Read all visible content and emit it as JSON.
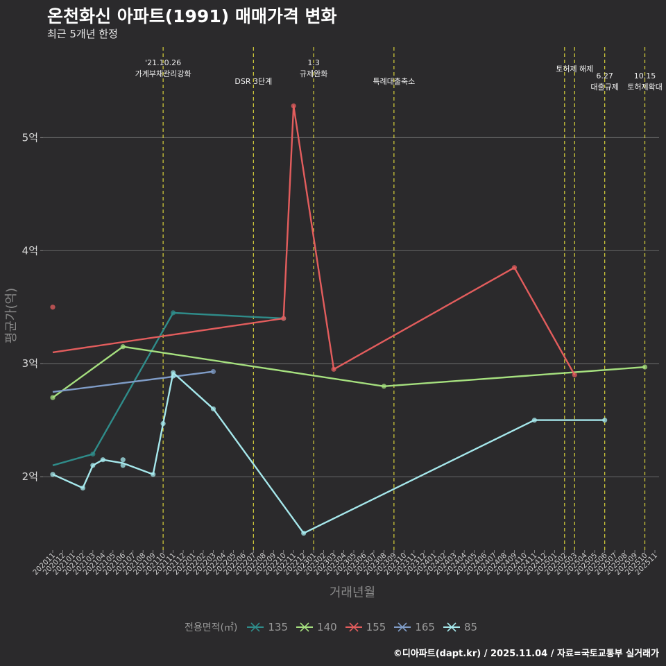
{
  "title": "온천화신 아파트(1991) 매매가격 변화",
  "subtitle": "최근 5개년 한정",
  "footer": "©디아파트(dapt.kr) / 2025.11.04 / 자료=국토교통부 실거래가",
  "chart_data": {
    "type": "line",
    "xlabel": "거래년월",
    "ylabel": "평균가(억)",
    "ylim": [
      1.35,
      5.8
    ],
    "yticks": [
      2,
      3,
      4,
      5
    ],
    "ytick_labels": [
      "2억",
      "3억",
      "4억",
      "5억"
    ],
    "x_tick_labels": [
      "202011",
      "202012",
      "202101",
      "202102",
      "202103",
      "202104",
      "202105",
      "202106",
      "202107",
      "202108",
      "202109",
      "202110",
      "202111",
      "202112",
      "202201",
      "202202",
      "202203",
      "202204",
      "202205",
      "202206",
      "202207",
      "202208",
      "202209",
      "202210",
      "202211",
      "202212",
      "202301",
      "202302",
      "202303",
      "202304",
      "202305",
      "202306",
      "202307",
      "202308",
      "202309",
      "202310",
      "202311",
      "202312",
      "202401",
      "202402",
      "202403",
      "202404",
      "202405",
      "202406",
      "202407",
      "202408",
      "202409",
      "202410",
      "202411",
      "202412",
      "202501",
      "202502",
      "202503",
      "202504",
      "202505",
      "202506",
      "202507",
      "202508",
      "202509",
      "202510",
      "202511"
    ],
    "events": [
      {
        "x": 11,
        "lines": [
          "'21.10.26",
          "가계부채관리강화"
        ]
      },
      {
        "x": 20,
        "lines": [
          "DSR 3단계"
        ]
      },
      {
        "x": 26,
        "lines": [
          "1.3",
          "규제완화"
        ]
      },
      {
        "x": 34,
        "lines": [
          "특례대출축소"
        ]
      },
      {
        "x": 51,
        "lines": []
      },
      {
        "x": 52,
        "lines": [
          "토허제 해제"
        ]
      },
      {
        "x": 55,
        "lines": [
          "6.27",
          "대출규제"
        ]
      },
      {
        "x": 59,
        "lines": [
          "10.15",
          "토허제확대"
        ]
      }
    ],
    "legend_title": "전용면적(㎡)",
    "series": [
      {
        "name": "135",
        "color": "#2f8c8a",
        "points": [
          [
            0,
            2.1
          ],
          [
            4,
            2.2
          ],
          [
            12,
            3.45
          ],
          [
            23,
            3.4
          ]
        ],
        "raw": [
          [
            4,
            2.2
          ],
          [
            12,
            3.45
          ],
          [
            23,
            3.4
          ]
        ]
      },
      {
        "name": "140",
        "color": "#a6e07f",
        "points": [
          [
            0,
            2.7
          ],
          [
            7,
            3.15
          ],
          [
            33,
            2.8
          ],
          [
            59,
            2.97
          ]
        ],
        "raw": [
          [
            0,
            2.7
          ],
          [
            7,
            3.15
          ],
          [
            33,
            2.8
          ],
          [
            59,
            2.97
          ]
        ]
      },
      {
        "name": "155",
        "color": "#e35d5d",
        "points": [
          [
            0,
            3.1
          ],
          [
            23,
            3.4
          ],
          [
            24,
            5.28
          ],
          [
            28,
            2.95
          ],
          [
            46,
            3.85
          ],
          [
            52,
            2.9
          ]
        ],
        "raw": [
          [
            0,
            3.5
          ],
          [
            23,
            3.4
          ],
          [
            24,
            5.28
          ],
          [
            28,
            2.95
          ],
          [
            46,
            3.85
          ],
          [
            52,
            2.9
          ]
        ]
      },
      {
        "name": "165",
        "color": "#7f9cc7",
        "points": [
          [
            0,
            2.75
          ],
          [
            16,
            2.93
          ]
        ],
        "raw": [
          [
            16,
            2.93
          ]
        ]
      },
      {
        "name": "85",
        "color": "#a6e8ec",
        "points": [
          [
            0,
            2.02
          ],
          [
            3,
            1.9
          ],
          [
            4,
            2.1
          ],
          [
            5,
            2.15
          ],
          [
            7,
            2.12
          ],
          [
            10,
            2.02
          ],
          [
            12,
            2.92
          ],
          [
            16,
            2.6
          ],
          [
            25,
            1.5
          ],
          [
            48,
            2.5
          ],
          [
            55,
            2.5
          ]
        ],
        "raw": [
          [
            0,
            2.02
          ],
          [
            3,
            1.9
          ],
          [
            4,
            2.1
          ],
          [
            5,
            2.15
          ],
          [
            7,
            2.15
          ],
          [
            7,
            2.1
          ],
          [
            10,
            2.02
          ],
          [
            11,
            2.47
          ],
          [
            12,
            2.92
          ],
          [
            12,
            2.89
          ],
          [
            16,
            2.6
          ],
          [
            25,
            1.5
          ],
          [
            48,
            2.5
          ],
          [
            55,
            2.5
          ]
        ]
      }
    ]
  }
}
